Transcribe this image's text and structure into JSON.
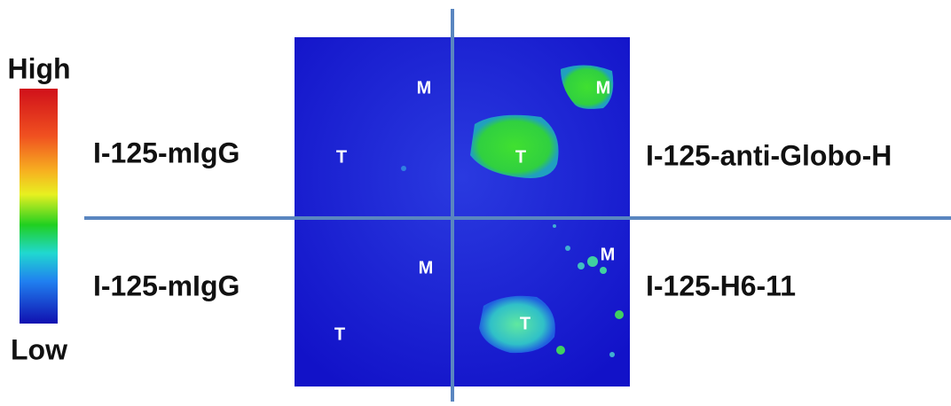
{
  "colorbar": {
    "high": "High",
    "low": "Low"
  },
  "rows": [
    {
      "left": "I-125-mIgG",
      "right": "I-125-anti-Globo-H"
    },
    {
      "left": "I-125-mIgG",
      "right": "I-125-H6-11"
    }
  ],
  "panels": [
    {
      "tumor": "T",
      "muscle": "M"
    },
    {
      "tumor": "T",
      "muscle": "M"
    },
    {
      "tumor": "T",
      "muscle": "M"
    },
    {
      "tumor": "T",
      "muscle": "M"
    }
  ]
}
